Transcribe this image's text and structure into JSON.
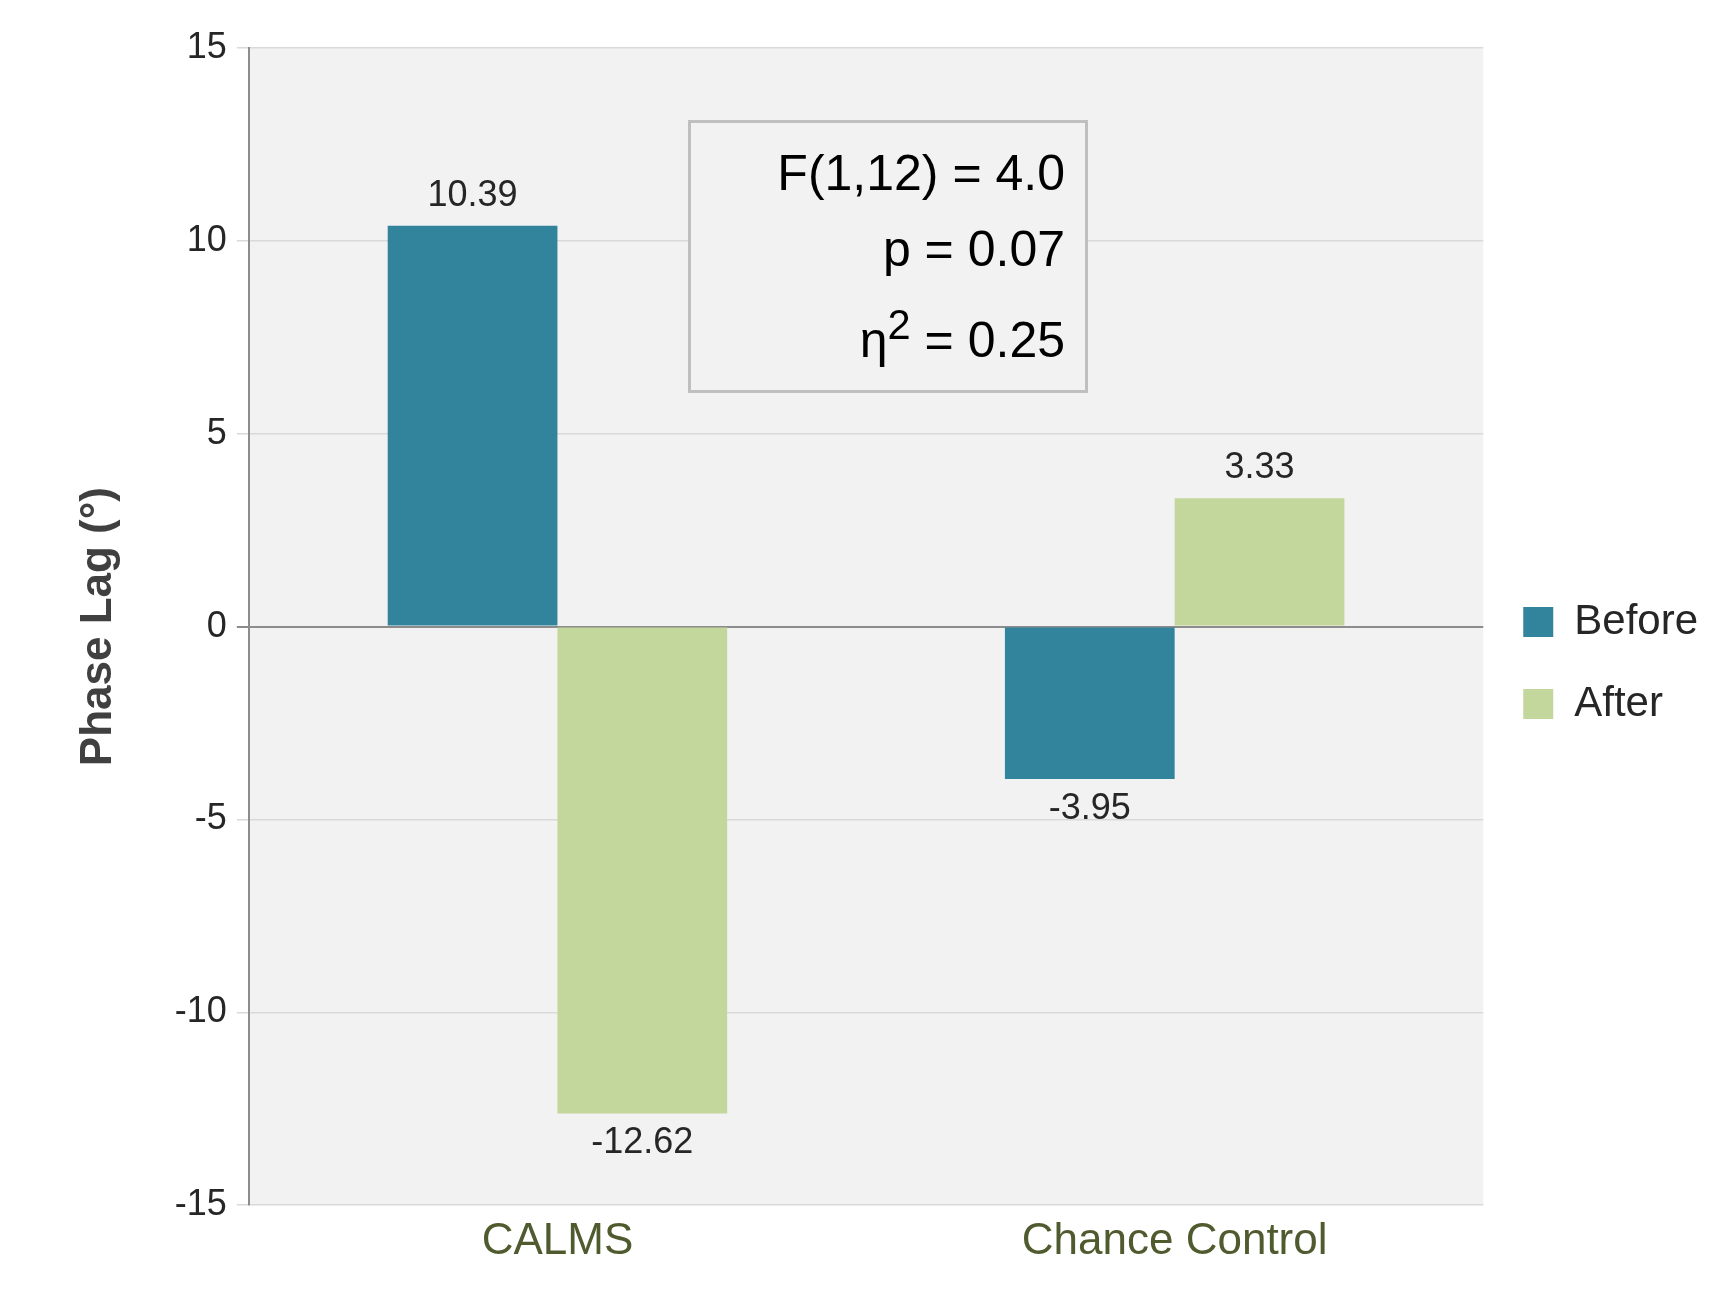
{
  "chart_data": {
    "type": "bar",
    "ylabel": "Phase Lag (°)",
    "categories": [
      "CALMS",
      "Chance Control"
    ],
    "series": [
      {
        "name": "Before",
        "color": "#31849b",
        "values": [
          10.39,
          -3.95
        ]
      },
      {
        "name": "After",
        "color": "#c3d69b",
        "values": [
          -12.62,
          3.33
        ]
      }
    ],
    "ylim": [
      -15,
      15
    ],
    "yticks": [
      -15,
      -10,
      -5,
      0,
      5,
      10,
      15
    ],
    "grid": "y",
    "legend": "right",
    "data_labels": true,
    "annotations": [
      "F(1,12) = 4.0",
      "p = 0.07",
      "η$^{2}$ = 0.25"
    ]
  }
}
